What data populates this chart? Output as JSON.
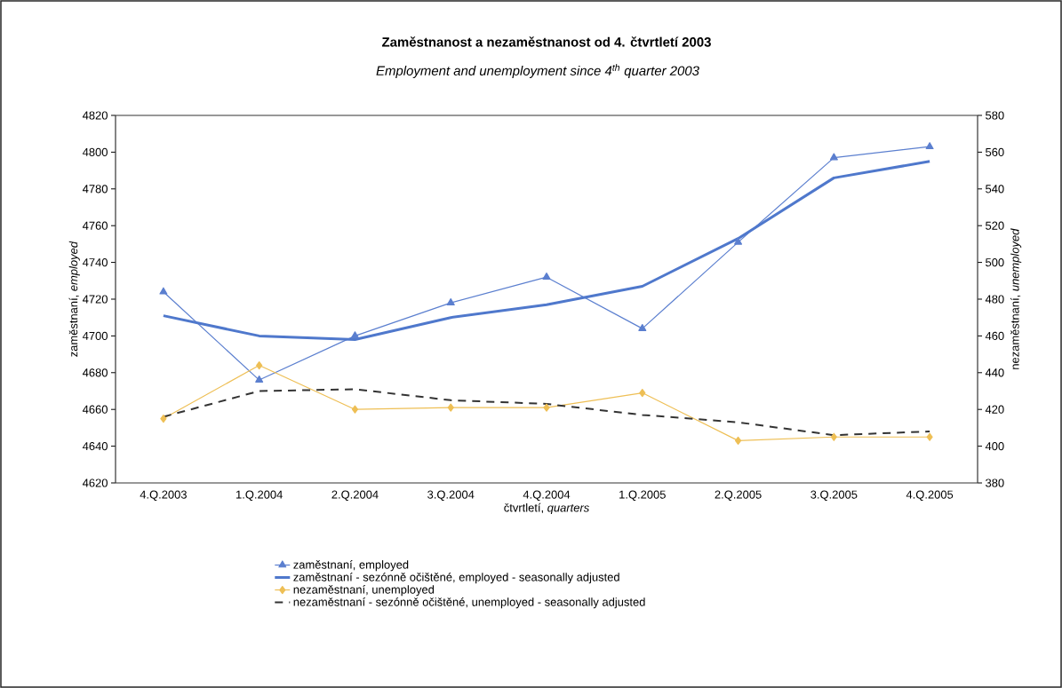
{
  "chart_data": {
    "type": "line",
    "title": "Zaměstnanost a nezaměstnanost od 4. čtvrtletí 2003",
    "subtitle": "Employment and unemployment since 4$^{th}$ quarter 2003",
    "xlabel": "čtvrtletí, *quarters*",
    "ylabel": "zaměstnaní, *employed*",
    "y2label": "nezaměstnaní, *unemployed*",
    "categories": [
      "4.Q.2003",
      "1.Q.2004",
      "2.Q.2004",
      "3.Q.2004",
      "4.Q.2004",
      "1.Q.2005",
      "2.Q.2005",
      "3.Q.2005",
      "4.Q.2005"
    ],
    "series": [
      {
        "name": "zaměstnaní, employed",
        "color": "#5b7fcf",
        "marker": "triangle",
        "line_style": "solid",
        "values": [
          4724,
          4676,
          4700,
          4718,
          4732,
          4704,
          4751,
          4797,
          4803
        ]
      },
      {
        "name": "zaměstnaní - sezónně očištěné, employed - seasonally adjusted",
        "color": "#4f78cc",
        "marker": "none",
        "line_style": "solid",
        "values": [
          4711,
          4700,
          4698,
          4710,
          4717,
          4727,
          4753,
          4786,
          4795
        ]
      },
      {
        "name": "nezaměstnaní, unemployed",
        "color": "#eebf55",
        "marker": "diamond",
        "line_style": "solid",
        "axis": "y2",
        "values": [
          415,
          444,
          420,
          421,
          421,
          429,
          403,
          405,
          405
        ]
      },
      {
        "name": "nezaměstnaní - sezónně očištěné, unemployed - seasonally adjusted",
        "color": "#333333",
        "marker": "none",
        "line_style": "dashed",
        "axis": "y2",
        "values": [
          416,
          430,
          431,
          425,
          423,
          417,
          413,
          406,
          408
        ]
      }
    ],
    "ylim": [
      4620,
      4820
    ],
    "yticks": [
      4620,
      4640,
      4660,
      4680,
      4700,
      4720,
      4740,
      4760,
      4780,
      4800,
      4820
    ],
    "y2lim": [
      380,
      580
    ],
    "y2ticks": [
      380,
      400,
      420,
      440,
      460,
      480,
      500,
      520,
      540,
      560,
      580
    ],
    "legend": "bottom"
  }
}
